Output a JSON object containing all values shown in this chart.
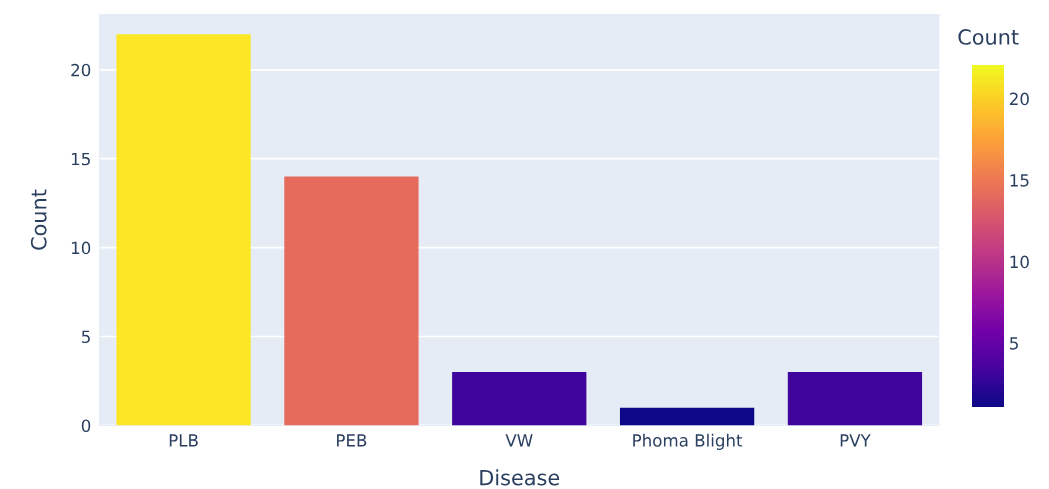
{
  "chart_data": {
    "type": "bar",
    "xlabel": "Disease",
    "ylabel": "Count",
    "categories": [
      "PLB",
      "PEB",
      "VW",
      "Phoma Blight",
      "PVY"
    ],
    "values": [
      22,
      14,
      3,
      1,
      3
    ],
    "colors": [
      "#fde725",
      "#e76b5c",
      "#3f049c",
      "#0d0887",
      "#3f049c"
    ],
    "ylim": [
      0,
      23.1
    ],
    "yticks": [
      0,
      5,
      10,
      15,
      20
    ],
    "grid": "y",
    "clabel": "Count",
    "clim": [
      1,
      22
    ],
    "cticks": [
      5,
      10,
      15,
      20
    ]
  }
}
